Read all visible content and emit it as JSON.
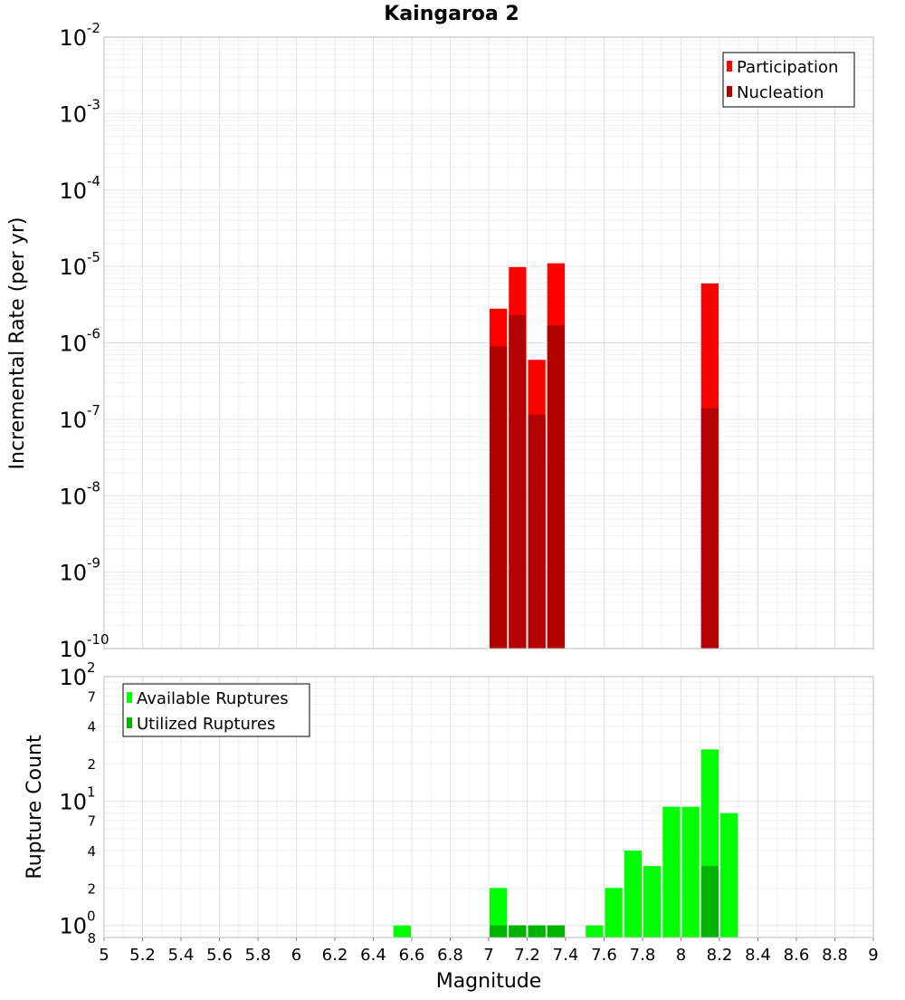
{
  "chart_data": [
    {
      "type": "bar",
      "title": "Kaingaroa 2",
      "ylabel": "Incremental Rate (per yr)",
      "yscale": "log",
      "ylim": [
        1e-10,
        0.01
      ],
      "xlim": [
        5,
        9
      ],
      "grid": true,
      "legend_position": "top-right",
      "bin_width": 0.1,
      "y_ticks": [
        {
          "base": "10",
          "exp": "-2",
          "value": 0.01
        },
        {
          "base": "10",
          "exp": "-3",
          "value": 0.001
        },
        {
          "base": "10",
          "exp": "-4",
          "value": 0.0001
        },
        {
          "base": "10",
          "exp": "-5",
          "value": 1e-05
        },
        {
          "base": "10",
          "exp": "-6",
          "value": 1e-06
        },
        {
          "base": "10",
          "exp": "-7",
          "value": 1e-07
        },
        {
          "base": "10",
          "exp": "-8",
          "value": 1e-08
        },
        {
          "base": "10",
          "exp": "-9",
          "value": 1e-09
        },
        {
          "base": "10",
          "exp": "-10",
          "value": 1e-10
        }
      ],
      "series": [
        {
          "name": "Participation",
          "color": "#ff0000",
          "points": [
            {
              "x": 7.05,
              "y": 2.8e-06
            },
            {
              "x": 7.15,
              "y": 9.8e-06
            },
            {
              "x": 7.25,
              "y": 6e-07
            },
            {
              "x": 7.35,
              "y": 1.1e-05
            },
            {
              "x": 8.15,
              "y": 6e-06
            }
          ]
        },
        {
          "name": "Nucleation",
          "color": "#b30000",
          "points": [
            {
              "x": 7.05,
              "y": 9e-07
            },
            {
              "x": 7.15,
              "y": 2.3e-06
            },
            {
              "x": 7.25,
              "y": 1.15e-07
            },
            {
              "x": 7.35,
              "y": 1.7e-06
            },
            {
              "x": 8.15,
              "y": 1.4e-07
            }
          ]
        }
      ]
    },
    {
      "type": "bar",
      "xlabel": "Magnitude",
      "ylabel": "Rupture Count",
      "yscale": "log",
      "ylim": [
        0.8,
        100
      ],
      "xlim": [
        5,
        9
      ],
      "grid": true,
      "legend_position": "top-left",
      "bin_width": 0.1,
      "x_ticks": [
        "5",
        "5.2",
        "5.4",
        "5.6",
        "5.8",
        "6",
        "6.2",
        "6.4",
        "6.6",
        "6.8",
        "7",
        "7.2",
        "7.4",
        "7.6",
        "7.8",
        "8",
        "8.2",
        "8.4",
        "8.6",
        "8.8",
        "9"
      ],
      "y_ticks": [
        {
          "base": "10",
          "exp": "2",
          "value": 100
        },
        {
          "base": "10",
          "exp": "1",
          "value": 10
        },
        {
          "base": "10",
          "exp": "0",
          "value": 1
        }
      ],
      "y_minor_ticks": [
        {
          "label": "7",
          "value": 70
        },
        {
          "label": "4",
          "value": 40
        },
        {
          "label": "2",
          "value": 20
        },
        {
          "label": "7",
          "value": 7
        },
        {
          "label": "4",
          "value": 4
        },
        {
          "label": "2",
          "value": 2
        },
        {
          "label": "8",
          "value": 0.8
        }
      ],
      "series": [
        {
          "name": "Available Ruptures",
          "color": "#00ff00",
          "points": [
            {
              "x": 6.55,
              "y": 1
            },
            {
              "x": 7.05,
              "y": 2
            },
            {
              "x": 7.15,
              "y": 1
            },
            {
              "x": 7.25,
              "y": 1
            },
            {
              "x": 7.35,
              "y": 1
            },
            {
              "x": 7.55,
              "y": 1
            },
            {
              "x": 7.65,
              "y": 2
            },
            {
              "x": 7.75,
              "y": 4
            },
            {
              "x": 7.85,
              "y": 3
            },
            {
              "x": 7.95,
              "y": 9
            },
            {
              "x": 8.05,
              "y": 9
            },
            {
              "x": 8.15,
              "y": 26
            },
            {
              "x": 8.25,
              "y": 8
            }
          ]
        },
        {
          "name": "Utilized Ruptures",
          "color": "#00b300",
          "points": [
            {
              "x": 7.05,
              "y": 1
            },
            {
              "x": 7.15,
              "y": 1
            },
            {
              "x": 7.25,
              "y": 1
            },
            {
              "x": 7.35,
              "y": 1
            },
            {
              "x": 8.15,
              "y": 3
            }
          ]
        }
      ]
    }
  ]
}
